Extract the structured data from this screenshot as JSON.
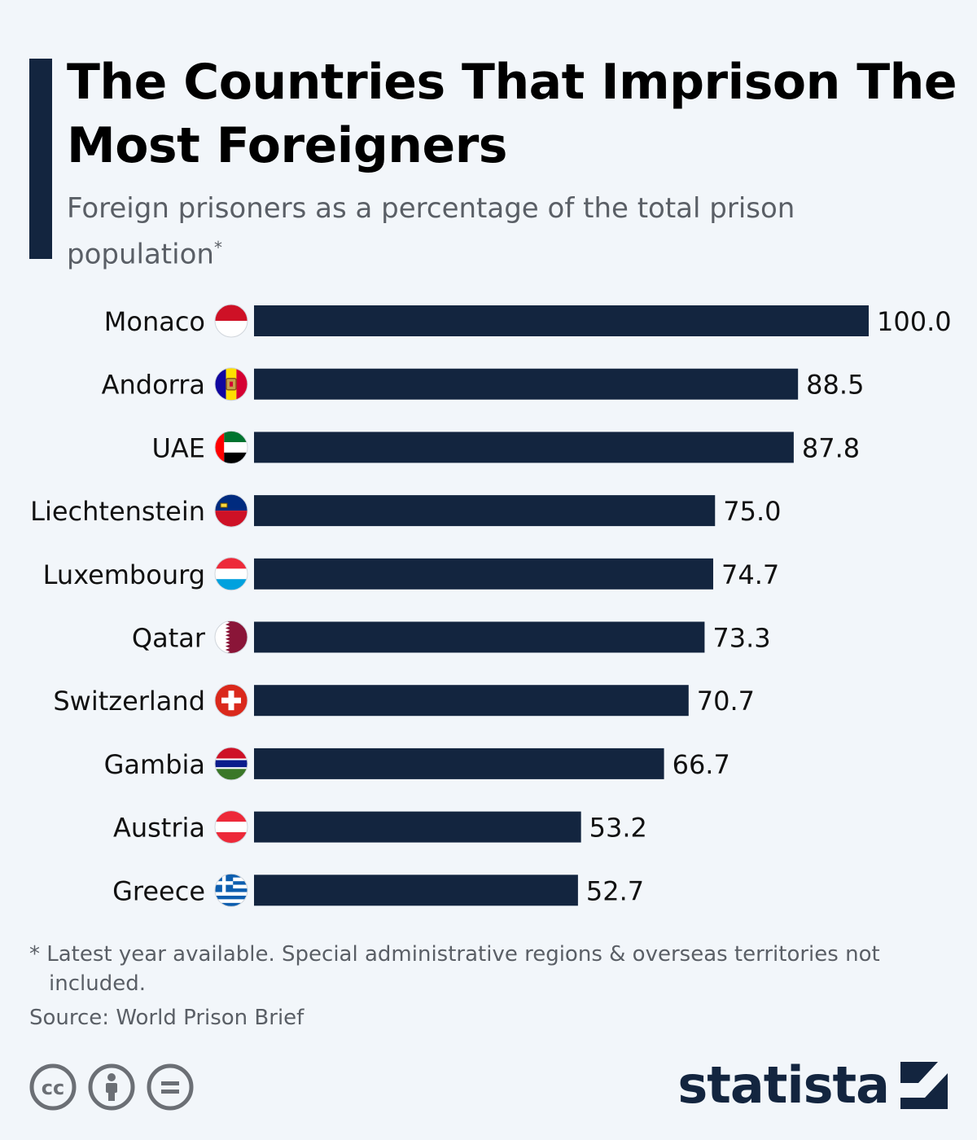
{
  "header": {
    "title": "The Countries That Imprison The Most Foreigners",
    "subtitle": "Foreign prisoners as a percentage of the total prison population",
    "subtitle_mark": "*"
  },
  "chart_data": {
    "type": "bar",
    "orientation": "horizontal",
    "title": "The Countries That Imprison The Most Foreigners",
    "subtitle": "Foreign prisoners as a percentage of the total prison population",
    "categories": [
      "Monaco",
      "Andorra",
      "UAE",
      "Liechtenstein",
      "Luxembourg",
      "Qatar",
      "Switzerland",
      "Gambia",
      "Austria",
      "Greece"
    ],
    "values": [
      100.0,
      88.5,
      87.8,
      75.0,
      74.7,
      73.3,
      70.7,
      66.7,
      53.2,
      52.7
    ],
    "value_labels": [
      "100.0",
      "88.5",
      "87.8",
      "75.0",
      "74.7",
      "73.3",
      "70.7",
      "66.7",
      "53.2",
      "52.7"
    ],
    "flags": [
      "monaco-flag-icon",
      "andorra-flag-icon",
      "uae-flag-icon",
      "liechtenstein-flag-icon",
      "luxembourg-flag-icon",
      "qatar-flag-icon",
      "switzerland-flag-icon",
      "gambia-flag-icon",
      "austria-flag-icon",
      "greece-flag-icon"
    ],
    "xlim": [
      0,
      100
    ],
    "grid": false,
    "bar_color": "#13253f"
  },
  "footer": {
    "footnote": "* Latest year available. Special administrative regions & overseas territories not included.",
    "source": "Source: World Prison Brief",
    "license_icons": [
      "creative-commons-icon",
      "attribution-icon",
      "no-derivatives-icon"
    ],
    "license_labels": [
      "cc",
      "i",
      "="
    ],
    "brand": "statista"
  },
  "colors": {
    "background": "#f2f6fa",
    "accent": "#13253f",
    "bar": "#13253f",
    "muted_text": "#5a5f66"
  }
}
